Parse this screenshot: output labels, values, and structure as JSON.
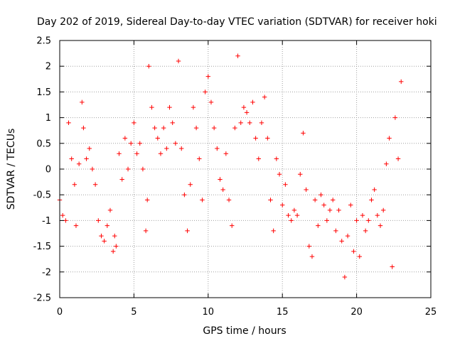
{
  "chart_data": {
    "type": "scatter",
    "title": "Day 202 of 2019, Sidereal Day-to-day VTEC variation (SDTVAR) for receiver hoki",
    "xlabel": "GPS time / hours",
    "ylabel": "SDTVAR / TECUs",
    "xlim": [
      0,
      25
    ],
    "ylim": [
      -2.5,
      2.5
    ],
    "xticks": [
      "0",
      "5",
      "10",
      "15",
      "20",
      "25"
    ],
    "yticks": [
      "-2.5",
      "-2",
      "-1.5",
      "-1",
      "-0.5",
      "0",
      "0.5",
      "1",
      "1.5",
      "2",
      "2.5"
    ],
    "grid": true,
    "marker": "+",
    "color": "#ff0000",
    "series": [
      {
        "name": "SDTVAR",
        "x": [
          0.0,
          0.2,
          0.4,
          0.6,
          0.8,
          1.0,
          1.1,
          1.3,
          1.5,
          1.6,
          1.8,
          2.0,
          2.2,
          2.4,
          2.6,
          2.8,
          3.0,
          3.2,
          3.4,
          3.6,
          3.7,
          3.8,
          4.0,
          4.2,
          4.4,
          4.6,
          4.8,
          5.0,
          5.2,
          5.4,
          5.6,
          5.8,
          5.9,
          6.0,
          6.2,
          6.4,
          6.6,
          6.8,
          7.0,
          7.2,
          7.4,
          7.6,
          7.8,
          8.0,
          8.2,
          8.4,
          8.6,
          8.8,
          9.0,
          9.2,
          9.4,
          9.6,
          9.8,
          10.0,
          10.2,
          10.4,
          10.6,
          10.8,
          11.0,
          11.2,
          11.4,
          11.6,
          11.8,
          12.0,
          12.2,
          12.4,
          12.6,
          12.8,
          13.0,
          13.2,
          13.4,
          13.6,
          13.8,
          14.0,
          14.2,
          14.4,
          14.6,
          14.8,
          15.0,
          15.2,
          15.4,
          15.6,
          15.8,
          16.0,
          16.2,
          16.4,
          16.6,
          16.8,
          17.0,
          17.2,
          17.4,
          17.6,
          17.8,
          18.0,
          18.2,
          18.4,
          18.6,
          18.8,
          19.0,
          19.2,
          19.4,
          19.6,
          19.8,
          20.0,
          20.2,
          20.4,
          20.6,
          20.8,
          21.0,
          21.2,
          21.4,
          21.6,
          21.8,
          22.0,
          22.2,
          22.4,
          22.6,
          22.8,
          23.0
        ],
        "y": [
          -0.6,
          -0.9,
          -1.0,
          0.9,
          0.2,
          -0.3,
          -1.1,
          0.1,
          1.3,
          0.8,
          0.2,
          0.4,
          0.0,
          -0.3,
          -1.0,
          -1.3,
          -1.4,
          -1.1,
          -0.8,
          -1.6,
          -1.3,
          -1.5,
          0.3,
          -0.2,
          0.6,
          0.0,
          0.5,
          0.9,
          0.3,
          0.5,
          0.0,
          -1.2,
          -0.6,
          2.0,
          1.2,
          0.8,
          0.6,
          0.3,
          0.8,
          0.4,
          1.2,
          0.9,
          0.5,
          2.1,
          0.4,
          -0.5,
          -1.2,
          -0.3,
          1.2,
          0.8,
          0.2,
          -0.6,
          1.5,
          1.8,
          1.3,
          0.8,
          0.4,
          -0.2,
          -0.4,
          0.3,
          -0.6,
          -1.1,
          0.8,
          2.2,
          0.9,
          1.2,
          1.1,
          0.9,
          1.3,
          0.6,
          0.2,
          0.9,
          1.4,
          0.6,
          -0.6,
          -1.2,
          0.2,
          -0.1,
          -0.7,
          -0.3,
          -0.9,
          -1.0,
          -0.8,
          -0.9,
          -0.1,
          0.7,
          -0.4,
          -1.5,
          -1.7,
          -0.6,
          -1.1,
          -0.5,
          -0.7,
          -1.0,
          -0.8,
          -0.6,
          -1.2,
          -0.8,
          -1.4,
          -2.1,
          -1.3,
          -0.7,
          -1.6,
          -1.0,
          -1.7,
          -0.9,
          -1.2,
          -1.0,
          -0.6,
          -0.4,
          -0.9,
          -1.1,
          -0.8,
          0.1,
          0.6,
          -1.9,
          1.0,
          0.2,
          1.7
        ]
      }
    ]
  }
}
